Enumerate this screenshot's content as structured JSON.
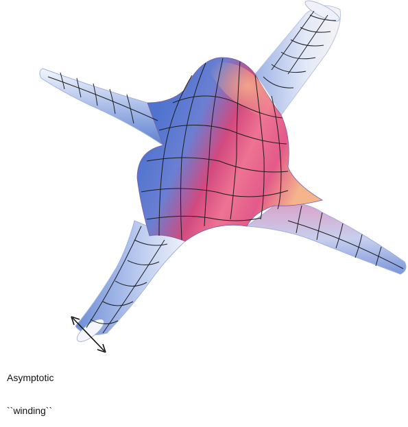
{
  "figure": {
    "annotation": {
      "line1": "Asymptotic",
      "line2": "``winding``"
    },
    "colors": {
      "blue": "#5f84d4",
      "light_blue": "#d5dff4",
      "magenta": "#d2447e",
      "pink": "#ee7796",
      "orange": "#f2b088",
      "grid": "#1b1b1b"
    }
  }
}
